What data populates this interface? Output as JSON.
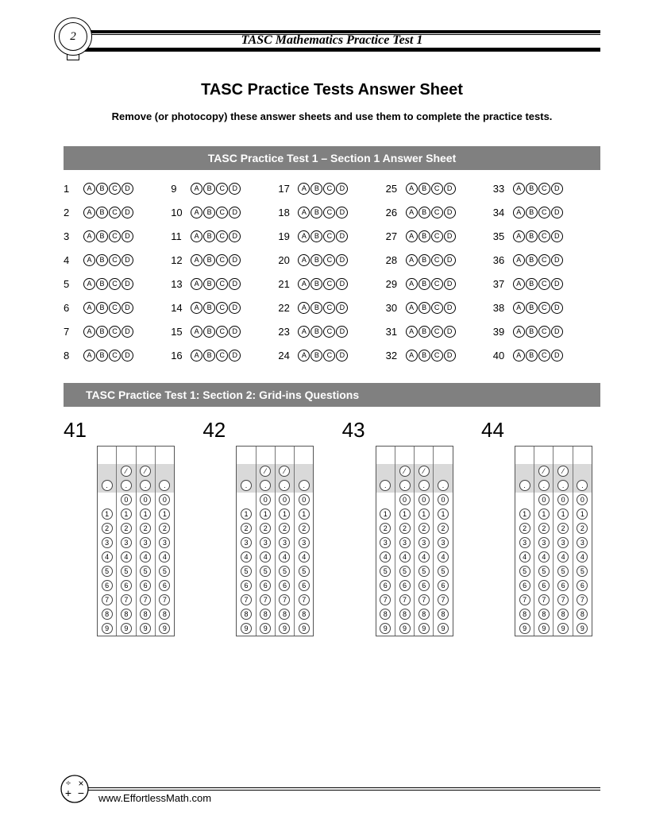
{
  "page_number": "2",
  "header_title": "TASC Mathematics Practice Test 1",
  "main_title": "TASC Practice Tests Answer Sheet",
  "instructions": "Remove (or photocopy) these answer sheets and use them to complete the practice tests.",
  "section1": {
    "banner": "TASC Practice Test 1 – Section 1 Answer Sheet",
    "choices": [
      "A",
      "B",
      "C",
      "D"
    ],
    "first": 1,
    "last": 40,
    "rows": 8,
    "cols": 5
  },
  "section2": {
    "banner": "TASC Practice Test 1: Section 2: Grid-ins Questions",
    "questions": [
      41,
      42,
      43,
      44
    ],
    "slash_cols": [
      1,
      2
    ],
    "dot_cols": [
      0,
      1,
      2,
      3
    ],
    "digits": [
      "0",
      "1",
      "2",
      "3",
      "4",
      "5",
      "6",
      "7",
      "8",
      "9"
    ],
    "digit_cols_for_zero": [
      1,
      2,
      3
    ],
    "digit_cols_for_rest": [
      0,
      1,
      2,
      3
    ]
  },
  "footer": {
    "site": "www.EffortlessMath.com"
  },
  "colors": {
    "banner_bg": "#808080",
    "banner_fg": "#ffffff",
    "shaded": "#d9d9d9",
    "text": "#000000"
  }
}
